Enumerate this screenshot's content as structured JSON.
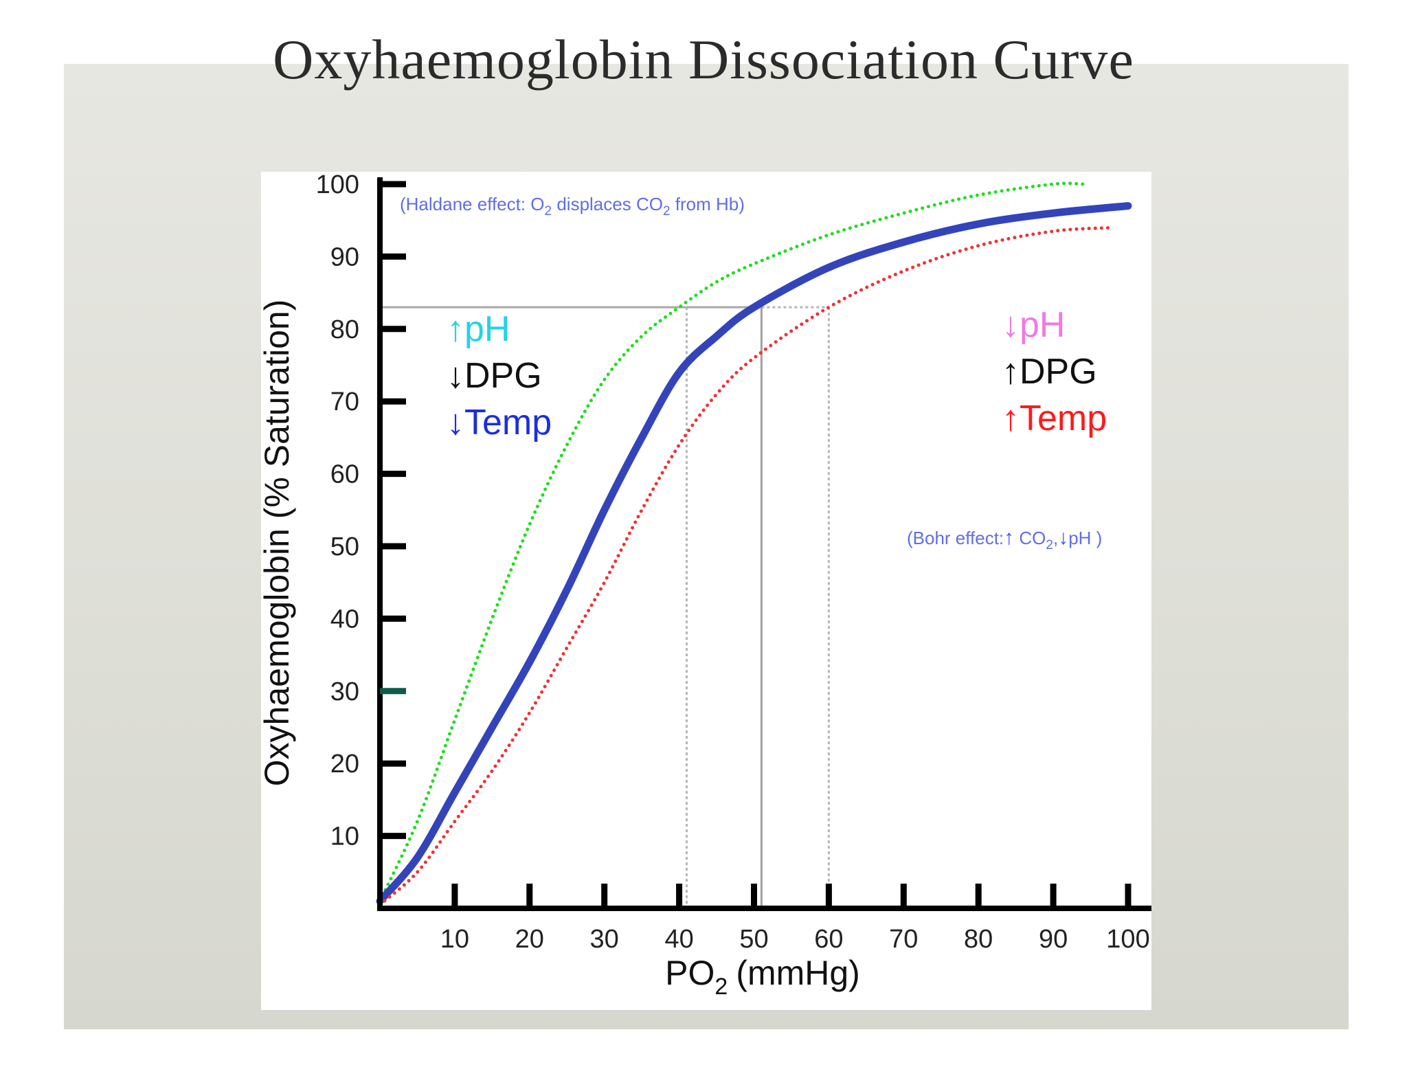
{
  "slide": {
    "title": "Oxyhaemoglobin Dissociation Curve"
  },
  "chart_data": {
    "type": "line",
    "xlabel": "PO",
    "xlabel_sub": "2",
    "xlabel_unit": "(mmHg)",
    "ylabel": "Oxyhaemoglobin (% Saturation)",
    "xlim": [
      0,
      100
    ],
    "ylim": [
      0,
      100
    ],
    "xticks": [
      10,
      20,
      30,
      40,
      50,
      60,
      70,
      80,
      90,
      100
    ],
    "yticks": [
      10,
      20,
      30,
      40,
      50,
      60,
      70,
      80,
      90,
      100
    ],
    "series": [
      {
        "style": "dotted",
        "color": "#22dd22",
        "x": [
          0,
          5,
          10,
          15,
          20,
          25,
          30,
          35,
          40,
          45,
          50,
          60,
          70,
          80,
          90,
          94
        ],
        "y": [
          1,
          12,
          26,
          40,
          53,
          64,
          73,
          79,
          83,
          86.5,
          89,
          93,
          96,
          98.5,
          100,
          100
        ]
      },
      {
        "style": "solid",
        "color": "#3344bb",
        "x": [
          0,
          5,
          10,
          15,
          20,
          25,
          30,
          35,
          40,
          45,
          50,
          60,
          70,
          80,
          90,
          100
        ],
        "y": [
          1,
          7,
          16,
          25,
          34,
          44,
          55,
          65,
          74,
          79,
          83,
          88.5,
          92,
          94.5,
          96,
          97
        ]
      },
      {
        "style": "dotted",
        "color": "#ee3333",
        "x": [
          0,
          5,
          10,
          15,
          20,
          25,
          30,
          35,
          40,
          45,
          50,
          60,
          70,
          80,
          90,
          98
        ],
        "y": [
          0.5,
          5,
          12,
          19,
          27,
          36,
          45,
          55,
          64,
          71,
          76,
          83,
          88,
          91.5,
          93.5,
          94
        ]
      }
    ],
    "reference_lines": {
      "saturation": 83,
      "po2_values": [
        41,
        51,
        60
      ]
    },
    "annotations": {
      "haldane": {
        "text_a": "(Haldane effect: O",
        "sub_a": "2",
        "text_b": " displaces CO",
        "sub_b": "2",
        "text_c": " from Hb)"
      },
      "bohr": {
        "text_a": "(Bohr effect:",
        "arrow_up": "↑",
        "text_b": " CO",
        "sub_b": "2",
        "text_c": ",",
        "arrow_down": "↓",
        "text_d": "pH )"
      }
    },
    "left_shift_factors": [
      {
        "arrow": "↑",
        "label": "pH",
        "arrow_color": "#22d3e6",
        "text_color": "#22d3e6"
      },
      {
        "arrow": "↓",
        "label": "DPG",
        "arrow_color": "#111111",
        "text_color": "#111111"
      },
      {
        "arrow": "↓",
        "label": "Temp",
        "arrow_color": "#1a2ee0",
        "text_color": "#1a2ee0"
      }
    ],
    "right_shift_factors": [
      {
        "arrow": "↓",
        "label": "pH",
        "arrow_color": "#f07ae0",
        "text_color": "#f07ae0"
      },
      {
        "arrow": "↑",
        "label": "DPG",
        "arrow_color": "#111111",
        "text_color": "#111111"
      },
      {
        "arrow": "↑",
        "label": "Temp",
        "arrow_color": "#ff1a1a",
        "text_color": "#ff1a1a"
      }
    ]
  }
}
